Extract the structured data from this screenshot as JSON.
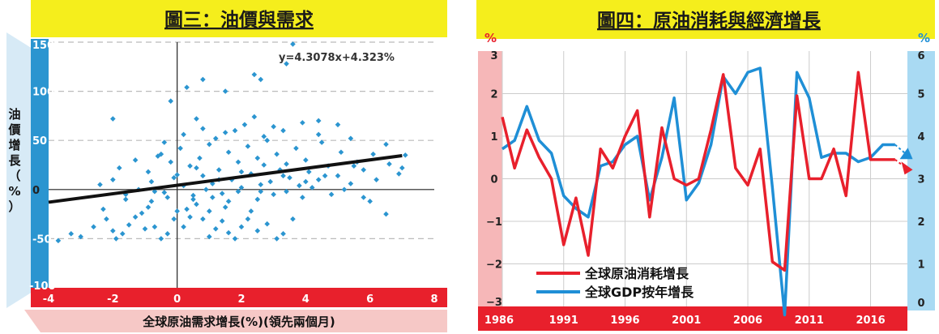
{
  "left": {
    "title": "圖三：油價與需求",
    "ylabel_chars": [
      "油",
      "價",
      "增",
      "長",
      "（",
      "%",
      "）"
    ],
    "xlabel": "全球原油需求增長(%)(領先兩個月)",
    "equation": "y=4.3078x+4.323%",
    "colors": {
      "title_bg": "#f5ee1c",
      "y_band": "#2b95d0",
      "x_band": "#e8202c",
      "x_label_bg": "#f6c8c6",
      "y_label_bg": "#d7eaf6",
      "point": "#2b95d0",
      "trend": "#111111"
    },
    "chart_data": {
      "type": "scatter",
      "xlim": [
        -4,
        8
      ],
      "ylim": [
        -100,
        150
      ],
      "xticks": [
        "-4",
        "-2",
        "0",
        "2",
        "4",
        "6",
        "8"
      ],
      "yticks": [
        "-100",
        "-50",
        "0",
        "50",
        "100",
        "150"
      ],
      "trendline": {
        "slope": 4.3078,
        "intercept": 4.323
      },
      "grid": "horizontal dashed",
      "points": [
        [
          -3.7,
          -52
        ],
        [
          -3.3,
          -45
        ],
        [
          -3.0,
          -48
        ],
        [
          -2.6,
          -38
        ],
        [
          -2.3,
          -20
        ],
        [
          -2.2,
          -30
        ],
        [
          -2.0,
          -42
        ],
        [
          -1.9,
          -50
        ],
        [
          -1.7,
          -45
        ],
        [
          -1.5,
          -36
        ],
        [
          -1.3,
          -28
        ],
        [
          -1.1,
          -24
        ],
        [
          -0.9,
          -18
        ],
        [
          -0.7,
          -38
        ],
        [
          -0.5,
          -50
        ],
        [
          -0.3,
          -45
        ],
        [
          -0.1,
          -30
        ],
        [
          0.0,
          -22
        ],
        [
          0.2,
          -38
        ],
        [
          0.4,
          -28
        ],
        [
          0.6,
          -15
        ],
        [
          0.8,
          -30
        ],
        [
          1.0,
          -48
        ],
        [
          1.2,
          -40
        ],
        [
          1.4,
          -32
        ],
        [
          1.6,
          -44
        ],
        [
          1.8,
          -50
        ],
        [
          2.0,
          -38
        ],
        [
          2.2,
          -30
        ],
        [
          2.5,
          -42
        ],
        [
          2.8,
          -35
        ],
        [
          3.1,
          -50
        ],
        [
          3.3,
          -45
        ],
        [
          3.6,
          -30
        ],
        [
          1.0,
          -22
        ],
        [
          1.5,
          -18
        ],
        [
          2.3,
          -22
        ],
        [
          -1.6,
          -10
        ],
        [
          -0.8,
          -12
        ],
        [
          0.5,
          -10
        ],
        [
          -2.4,
          5
        ],
        [
          -2.0,
          10
        ],
        [
          -1.6,
          -5
        ],
        [
          -1.2,
          0
        ],
        [
          -0.8,
          8
        ],
        [
          -0.4,
          -3
        ],
        [
          -0.1,
          12
        ],
        [
          0.2,
          4
        ],
        [
          0.5,
          -6
        ],
        [
          0.8,
          14
        ],
        [
          1.1,
          6
        ],
        [
          1.4,
          -4
        ],
        [
          1.7,
          10
        ],
        [
          2.0,
          2
        ],
        [
          2.3,
          16
        ],
        [
          2.6,
          -2
        ],
        [
          2.9,
          8
        ],
        [
          3.2,
          20
        ],
        [
          3.5,
          12
        ],
        [
          3.8,
          4
        ],
        [
          4.1,
          18
        ],
        [
          4.4,
          10
        ],
        [
          4.7,
          24
        ],
        [
          5.0,
          14
        ],
        [
          5.4,
          6
        ],
        [
          5.8,
          20
        ],
        [
          6.2,
          10
        ],
        [
          6.6,
          26
        ],
        [
          6.9,
          16
        ],
        [
          7.0,
          22
        ],
        [
          -1.8,
          22
        ],
        [
          -1.3,
          30
        ],
        [
          -0.9,
          18
        ],
        [
          -0.5,
          36
        ],
        [
          -0.2,
          28
        ],
        [
          0.1,
          42
        ],
        [
          0.4,
          24
        ],
        [
          0.7,
          32
        ],
        [
          1.0,
          46
        ],
        [
          1.3,
          20
        ],
        [
          1.6,
          38
        ],
        [
          1.9,
          28
        ],
        [
          2.2,
          44
        ],
        [
          2.5,
          32
        ],
        [
          2.8,
          50
        ],
        [
          3.1,
          36
        ],
        [
          3.4,
          26
        ],
        [
          3.7,
          42
        ],
        [
          4.0,
          30
        ],
        [
          4.5,
          48
        ],
        [
          5.1,
          38
        ],
        [
          5.6,
          28
        ],
        [
          6.1,
          36
        ],
        [
          6.5,
          46
        ],
        [
          0.2,
          56
        ],
        [
          0.8,
          62
        ],
        [
          1.5,
          58
        ],
        [
          2.1,
          66
        ],
        [
          2.7,
          54
        ],
        [
          3.3,
          60
        ],
        [
          3.9,
          68
        ],
        [
          4.4,
          56
        ],
        [
          5.0,
          66
        ],
        [
          5.4,
          52
        ],
        [
          -0.4,
          48
        ],
        [
          0.6,
          72
        ],
        [
          1.2,
          52
        ],
        [
          1.8,
          60
        ],
        [
          2.4,
          74
        ],
        [
          3.0,
          64
        ],
        [
          -2.0,
          72
        ],
        [
          -0.2,
          90
        ],
        [
          0.3,
          104
        ],
        [
          1.5,
          100
        ],
        [
          0.8,
          112
        ],
        [
          2.4,
          117
        ],
        [
          2.6,
          112
        ],
        [
          3.4,
          128
        ],
        [
          3.6,
          148
        ],
        [
          4.4,
          70
        ],
        [
          -0.6,
          34
        ],
        [
          0.0,
          15
        ],
        [
          0.9,
          0
        ],
        [
          1.6,
          -12
        ],
        [
          2.5,
          -10
        ],
        [
          3.0,
          -5
        ],
        [
          3.9,
          -8
        ],
        [
          4.8,
          -5
        ],
        [
          6.0,
          -12
        ],
        [
          6.5,
          -25
        ],
        [
          -1.0,
          -40
        ],
        [
          -0.3,
          -8
        ],
        [
          0.3,
          -20
        ],
        [
          1.1,
          -8
        ],
        [
          1.9,
          -2
        ],
        [
          2.6,
          5
        ],
        [
          3.4,
          -2
        ],
        [
          4.2,
          2
        ],
        [
          5.2,
          0
        ],
        [
          5.8,
          -8
        ],
        [
          -0.7,
          -2
        ],
        [
          0.6,
          22
        ],
        [
          1.3,
          10
        ],
        [
          2.0,
          18
        ],
        [
          2.7,
          25
        ],
        [
          3.3,
          14
        ],
        [
          4.0,
          8
        ],
        [
          4.6,
          14
        ],
        [
          5.5,
          24
        ],
        [
          7.1,
          35
        ]
      ]
    }
  },
  "right": {
    "title": "圖四：原油消耗與經濟增長",
    "left_unit": "%",
    "right_unit": "%",
    "legend": [
      "全球原油消耗增長",
      "全球GDP按年增長"
    ],
    "colors": {
      "title_bg": "#f5ee1c",
      "left_band": "#f6b7b8",
      "right_band": "#a9daf3",
      "x_band": "#e8202c",
      "oil": "#e8202c",
      "gdp": "#1f8fd6"
    },
    "chart_data": {
      "type": "line",
      "xlim": [
        1986,
        2019
      ],
      "xticks": [
        "1986",
        "1991",
        "1996",
        "2001",
        "2006",
        "2011",
        "2016"
      ],
      "y_left_ticks": [
        "3",
        "2",
        "1",
        "0",
        "−1",
        "−2",
        "−3"
      ],
      "y_right_ticks": [
        "6",
        "5",
        "4",
        "3",
        "2",
        "1",
        "0"
      ],
      "ylim_left": [
        -3,
        3
      ],
      "ylim_right": [
        0,
        6
      ],
      "series": [
        {
          "name": "全球原油消耗增長",
          "axis": "left",
          "x": [
            1986,
            1987,
            1988,
            1989,
            1990,
            1991,
            1992,
            1993,
            1994,
            1995,
            1996,
            1997,
            1998,
            1999,
            2000,
            2001,
            2002,
            2003,
            2004,
            2005,
            2006,
            2007,
            2008,
            2009,
            2010,
            2011,
            2012,
            2013,
            2014,
            2015,
            2016,
            2017,
            2018
          ],
          "y": [
            1.45,
            0.25,
            1.15,
            0.5,
            0.0,
            -1.55,
            -0.45,
            -1.8,
            0.7,
            0.25,
            1.0,
            1.6,
            -0.9,
            1.2,
            0.0,
            -0.15,
            0.0,
            1.15,
            2.45,
            0.25,
            -0.15,
            0.7,
            -1.95,
            -2.15,
            1.95,
            0.0,
            0.0,
            0.7,
            -0.4,
            2.5,
            0.45,
            0.45,
            0.45
          ],
          "trend_end": 0.25
        },
        {
          "name": "全球GDP按年增長",
          "axis": "right",
          "x": [
            1986,
            1987,
            1988,
            1989,
            1990,
            1991,
            1992,
            1993,
            1994,
            1995,
            1996,
            1997,
            1998,
            1999,
            2000,
            2001,
            2002,
            2003,
            2004,
            2005,
            2006,
            2007,
            2008,
            2009,
            2010,
            2011,
            2012,
            2013,
            2014,
            2015,
            2016,
            2017,
            2018
          ],
          "y": [
            3.7,
            3.9,
            4.7,
            3.9,
            3.6,
            2.6,
            2.3,
            2.1,
            3.3,
            3.4,
            3.8,
            4.0,
            2.5,
            3.5,
            4.9,
            2.5,
            2.9,
            3.8,
            5.4,
            5.0,
            5.5,
            5.6,
            2.8,
            -0.2,
            5.5,
            4.9,
            3.5,
            3.6,
            3.6,
            3.4,
            3.5,
            3.8,
            3.8
          ],
          "trend_end": 3.5
        }
      ]
    }
  }
}
